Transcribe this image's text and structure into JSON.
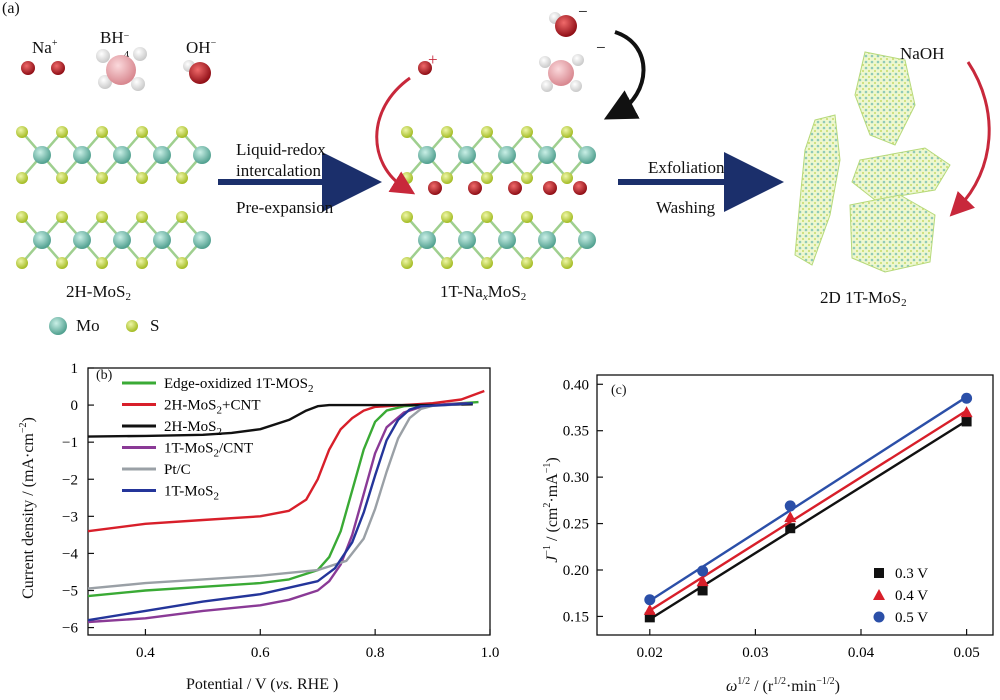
{
  "panel_a": {
    "label": "(a)",
    "ions": {
      "na": "Na",
      "na_sup": "+",
      "bh": "BH",
      "bh_sub": "4",
      "bh_sup": "−",
      "oh": "OH",
      "oh_sup": "−"
    },
    "step1": {
      "line1": "Liquid-redox",
      "line2": "intercalation",
      "line3": "Pre-expansion"
    },
    "step2": {
      "line1": "Exfoliation",
      "line2": "Washing"
    },
    "stage1": {
      "main": "2H-MoS",
      "sub": "2"
    },
    "stage2": {
      "pre": "1T-Na",
      "x": "x",
      "main": "MoS",
      "sub": "2"
    },
    "stage3": {
      "main": "2D 1T-MoS",
      "sub": "2"
    },
    "naoh": "NaOH",
    "plus": "+",
    "minus": "−",
    "legend_mo": "Mo",
    "legend_s": "S",
    "colors": {
      "mo": "#5fb6a4",
      "s": "#b8cf3a",
      "na": "#c01a24",
      "arrow": "#1b2f6b",
      "curve_red": "#c8283b"
    }
  },
  "panel_b": {
    "label": "(b)",
    "ylabel_main": "Current density / (mA·cm",
    "ylabel_sup": "−2",
    "ylabel_end": ")",
    "xlabel_main": "Potential / V (",
    "xlabel_vs": "vs.",
    "xlabel_end": " RHE )",
    "yticks": [
      "1",
      "0",
      "−1",
      "−2",
      "−3",
      "−4",
      "−5",
      "−6"
    ],
    "xticks": [
      "0.4",
      "0.6",
      "0.8",
      "1.0"
    ],
    "legend": [
      {
        "main": "Edge-oxidized 1T-MOS",
        "sub": "2",
        "tail": "",
        "color": "#3aaa35"
      },
      {
        "main": "2H-MoS",
        "sub": "2",
        "tail": "+CNT",
        "color": "#d81f2a"
      },
      {
        "main": "2H-MoS",
        "sub": "2",
        "tail": "",
        "color": "#111111"
      },
      {
        "main": "1T-MoS",
        "sub": "2",
        "tail": "/CNT",
        "color": "#8a3a96"
      },
      {
        "main": "Pt/C",
        "sub": "",
        "tail": "",
        "color": "#9aa0a6"
      },
      {
        "main": "1T-MoS",
        "sub": "2",
        "tail": "",
        "color": "#24359a"
      }
    ]
  },
  "panel_c": {
    "label": "(c)",
    "ylabel_main": "J",
    "ylabel_sup1": "−1",
    "ylabel_mid": " / (cm",
    "ylabel_sup2": "2",
    "ylabel_mid2": "·mA",
    "ylabel_sup3": "−1",
    "ylabel_end": ")",
    "xlabel_omega": "ω",
    "xlabel_sup": "1/2",
    "xlabel_mid": " / (r",
    "xlabel_sup2": "1/2",
    "xlabel_mid2": "·min",
    "xlabel_sup3": "−1/2",
    "xlabel_end": ")",
    "yticks": [
      "0.40",
      "0.35",
      "0.30",
      "0.25",
      "0.20",
      "0.15"
    ],
    "xticks": [
      "0.02",
      "0.03",
      "0.04",
      "0.05"
    ],
    "legend": [
      {
        "label": "0.3 V",
        "color": "#111111",
        "marker": "square"
      },
      {
        "label": "0.4 V",
        "color": "#d81f2a",
        "marker": "triangle"
      },
      {
        "label": "0.5 V",
        "color": "#2b4fa8",
        "marker": "circle"
      }
    ]
  },
  "chart_data": [
    {
      "type": "line",
      "xlim": [
        0.3,
        1.0
      ],
      "ylim": [
        -6.2,
        1.0
      ],
      "series": [
        {
          "name": "Edge-oxidized 1T-MOS2",
          "color": "#3aaa35",
          "x": [
            0.3,
            0.4,
            0.5,
            0.6,
            0.65,
            0.7,
            0.72,
            0.74,
            0.76,
            0.78,
            0.8,
            0.82,
            0.85,
            0.88,
            0.92,
            0.98
          ],
          "y": [
            -5.15,
            -5.0,
            -4.9,
            -4.8,
            -4.7,
            -4.45,
            -4.1,
            -3.4,
            -2.3,
            -1.2,
            -0.45,
            -0.15,
            -0.03,
            0.0,
            0.02,
            0.08
          ]
        },
        {
          "name": "2H-MoS2+CNT",
          "color": "#d81f2a",
          "x": [
            0.3,
            0.4,
            0.5,
            0.6,
            0.65,
            0.68,
            0.7,
            0.72,
            0.74,
            0.76,
            0.78,
            0.8,
            0.85,
            0.9,
            0.95,
            0.99
          ],
          "y": [
            -3.4,
            -3.2,
            -3.1,
            -3.0,
            -2.85,
            -2.55,
            -2.0,
            -1.2,
            -0.65,
            -0.35,
            -0.15,
            -0.05,
            0.0,
            0.05,
            0.15,
            0.38
          ]
        },
        {
          "name": "2H-MoS2",
          "color": "#111111",
          "x": [
            0.3,
            0.4,
            0.5,
            0.55,
            0.6,
            0.65,
            0.68,
            0.7,
            0.72,
            0.75,
            0.8,
            0.9,
            0.97
          ],
          "y": [
            -0.85,
            -0.83,
            -0.8,
            -0.75,
            -0.65,
            -0.4,
            -0.15,
            -0.03,
            0.0,
            0.0,
            0.0,
            0.0,
            0.02
          ]
        },
        {
          "name": "1T-MoS2/CNT",
          "color": "#8a3a96",
          "x": [
            0.3,
            0.4,
            0.5,
            0.6,
            0.65,
            0.7,
            0.72,
            0.74,
            0.76,
            0.78,
            0.8,
            0.82,
            0.85,
            0.88,
            0.92,
            0.96
          ],
          "y": [
            -5.85,
            -5.75,
            -5.55,
            -5.4,
            -5.25,
            -5.0,
            -4.75,
            -4.3,
            -3.5,
            -2.4,
            -1.3,
            -0.6,
            -0.2,
            -0.05,
            0.02,
            0.05
          ]
        },
        {
          "name": "Pt/C",
          "color": "#9aa0a6",
          "x": [
            0.3,
            0.4,
            0.5,
            0.6,
            0.7,
            0.75,
            0.78,
            0.8,
            0.82,
            0.84,
            0.86,
            0.88,
            0.9,
            0.95
          ],
          "y": [
            -4.95,
            -4.8,
            -4.7,
            -4.6,
            -4.45,
            -4.2,
            -3.6,
            -2.8,
            -1.8,
            -0.9,
            -0.35,
            -0.1,
            -0.02,
            0.02
          ]
        },
        {
          "name": "1T-MoS2",
          "color": "#24359a",
          "x": [
            0.3,
            0.4,
            0.5,
            0.6,
            0.7,
            0.73,
            0.76,
            0.78,
            0.8,
            0.82,
            0.84,
            0.86,
            0.88,
            0.92,
            0.97
          ],
          "y": [
            -5.8,
            -5.55,
            -5.3,
            -5.1,
            -4.75,
            -4.4,
            -3.7,
            -2.9,
            -1.9,
            -0.95,
            -0.4,
            -0.12,
            -0.03,
            0.0,
            0.05
          ]
        }
      ]
    },
    {
      "type": "scatter",
      "xlim": [
        0.015,
        0.0525
      ],
      "ylim": [
        0.13,
        0.41
      ],
      "x": [
        0.02,
        0.025,
        0.0333,
        0.05
      ],
      "series": [
        {
          "name": "0.3 V",
          "color": "#111111",
          "marker": "square",
          "values": [
            0.149,
            0.178,
            0.245,
            0.36
          ]
        },
        {
          "name": "0.4 V",
          "color": "#d81f2a",
          "marker": "triangle",
          "values": [
            0.157,
            0.188,
            0.257,
            0.37
          ]
        },
        {
          "name": "0.5 V",
          "color": "#2b4fa8",
          "marker": "circle",
          "values": [
            0.168,
            0.199,
            0.269,
            0.385
          ]
        }
      ]
    }
  ]
}
